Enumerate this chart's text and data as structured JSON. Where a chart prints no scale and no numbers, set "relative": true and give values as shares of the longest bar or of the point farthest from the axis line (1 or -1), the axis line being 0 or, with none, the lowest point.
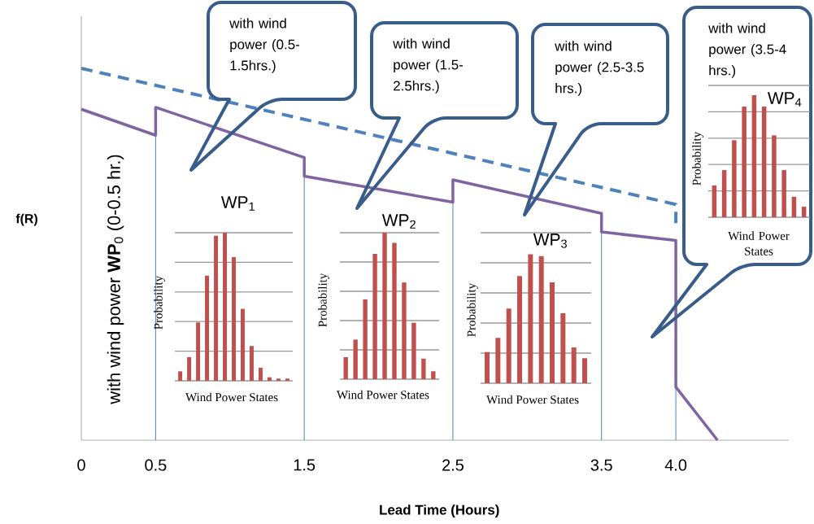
{
  "chart_data": [
    {
      "type": "line",
      "xlabel": "Lead Time  (Hours)",
      "ylabel": "f(R)",
      "relative": true,
      "xlim": [
        0,
        4.76
      ],
      "xticks": [
        0,
        0.5,
        1.5,
        2.5,
        3.5,
        {
          "value": 4,
          "label": "4.0"
        }
      ],
      "series": [
        {
          "color": "#8064a2",
          "x": [
            0,
            0.5,
            0.5,
            1.5,
            1.5,
            2.5,
            2.5,
            3.5,
            3.5,
            4.0,
            4.0,
            4.28
          ],
          "values": [
            0.89,
            0.82,
            0.895,
            0.76,
            0.71,
            0.64,
            0.7,
            0.61,
            0.56,
            0.537,
            0.143,
            0
          ]
        },
        {
          "color": "#4f81bd",
          "line_style": "dashed",
          "x": [
            0,
            4.0,
            4.0
          ],
          "values": [
            1,
            0.634,
            0.58
          ]
        }
      ],
      "ref_lines": [
        {
          "axis": "x",
          "value": 0.5,
          "color": "#4f81bd"
        },
        {
          "axis": "x",
          "value": 1.5,
          "color": "#4f81bd"
        },
        {
          "axis": "x",
          "value": 2.5,
          "color": "#4f81bd"
        },
        {
          "axis": "x",
          "value": 3.5,
          "color": "#4f81bd"
        },
        {
          "axis": "x",
          "value": 4.0,
          "color": "#4f81bd"
        }
      ],
      "annotations": [
        "with wind power (0.5-1.5hrs.)",
        "with wind power (1.5-2.5hrs.)",
        "with wind power (2.5-3.5 hrs.)",
        "with wind power (3.5-4 hrs.)",
        "with wind power **WP**$_{0}$ (0-0.5 hr.)"
      ]
    },
    {
      "type": "bar",
      "title": "WP$_{1}$",
      "xlabel": "Wind Power States",
      "ylabel": "Probability",
      "relative": true,
      "grid": "y",
      "color": "#c0504d",
      "categories": [
        null,
        null,
        null,
        null,
        null,
        null,
        null,
        null,
        null,
        null,
        null,
        null,
        null
      ],
      "values": [
        0.064,
        0.16,
        0.394,
        0.71,
        0.98,
        1,
        0.835,
        0.486,
        0.235,
        0.088,
        0.024,
        0.015,
        0.015
      ]
    },
    {
      "type": "bar",
      "title": "WP$_{2}$",
      "xlabel": "Wind Power States",
      "ylabel": "Probability",
      "relative": true,
      "grid": "y",
      "color": "#c0504d",
      "categories": [
        null,
        null,
        null,
        null,
        null,
        null,
        null,
        null,
        null,
        null
      ],
      "values": [
        0.15,
        0.27,
        0.545,
        0.855,
        1,
        0.93,
        0.66,
        0.385,
        0.14,
        0.054
      ]
    },
    {
      "type": "bar",
      "title": "WP$_{3}$",
      "xlabel": "Wind Power States",
      "ylabel": "Probability",
      "relative": true,
      "grid": "y",
      "color": "#c0504d",
      "categories": [
        null,
        null,
        null,
        null,
        null,
        null,
        null,
        null,
        null,
        null
      ],
      "values": [
        0.242,
        0.352,
        0.579,
        0.832,
        1,
        0.987,
        0.783,
        0.543,
        0.278,
        0.194
      ]
    },
    {
      "type": "bar",
      "title": "WP$_{4}$",
      "xlabel": "Wind Power States",
      "ylabel": "Probability",
      "relative": true,
      "grid": "y",
      "color": "#c0504d",
      "categories": [
        null,
        null,
        null,
        null,
        null,
        null,
        null,
        null,
        null,
        null
      ],
      "values": [
        0.26,
        0.386,
        0.631,
        0.907,
        1,
        0.907,
        0.671,
        0.386,
        0.168,
        0.086
      ]
    }
  ]
}
